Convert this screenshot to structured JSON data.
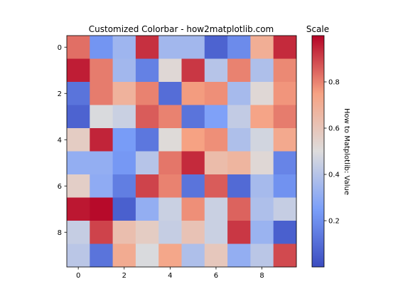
{
  "chart_data": {
    "type": "heatmap",
    "title": "Customized Colorbar - how2matplotlib.com",
    "xlabel": "",
    "ylabel": "",
    "rows": 10,
    "cols": 10,
    "x_ticks": [
      0,
      2,
      4,
      6,
      8
    ],
    "y_ticks": [
      0,
      2,
      4,
      6,
      8
    ],
    "values": [
      [
        0.83,
        0.22,
        0.34,
        0.93,
        0.35,
        0.35,
        0.07,
        0.19,
        0.7,
        0.94
      ],
      [
        0.96,
        0.81,
        0.35,
        0.16,
        0.52,
        0.92,
        0.4,
        0.8,
        0.38,
        0.79
      ],
      [
        0.12,
        0.81,
        0.68,
        0.8,
        0.1,
        0.76,
        0.78,
        0.36,
        0.52,
        0.77
      ],
      [
        0.07,
        0.49,
        0.45,
        0.86,
        0.8,
        0.12,
        0.26,
        0.43,
        0.74,
        0.81
      ],
      [
        0.57,
        0.95,
        0.24,
        0.13,
        0.51,
        0.75,
        0.78,
        0.38,
        0.47,
        0.72
      ],
      [
        0.31,
        0.31,
        0.23,
        0.4,
        0.82,
        0.94,
        0.64,
        0.67,
        0.52,
        0.17
      ],
      [
        0.56,
        0.3,
        0.15,
        0.9,
        0.8,
        0.12,
        0.86,
        0.09,
        0.36,
        0.21
      ],
      [
        0.97,
        0.99,
        0.06,
        0.31,
        0.45,
        0.78,
        0.45,
        0.85,
        0.38,
        0.44
      ],
      [
        0.44,
        0.9,
        0.63,
        0.57,
        0.44,
        0.61,
        0.45,
        0.92,
        0.33,
        0.06
      ],
      [
        0.41,
        0.12,
        0.71,
        0.49,
        0.73,
        0.38,
        0.59,
        0.31,
        0.41,
        0.89
      ]
    ],
    "colormap": "coolwarm",
    "colorbar": {
      "label": "How to Matplotlib: Value",
      "title": "Scale",
      "vmin": 0.0,
      "vmax": 1.0,
      "ticks": [
        0.2,
        0.4,
        0.6,
        0.8
      ]
    }
  }
}
